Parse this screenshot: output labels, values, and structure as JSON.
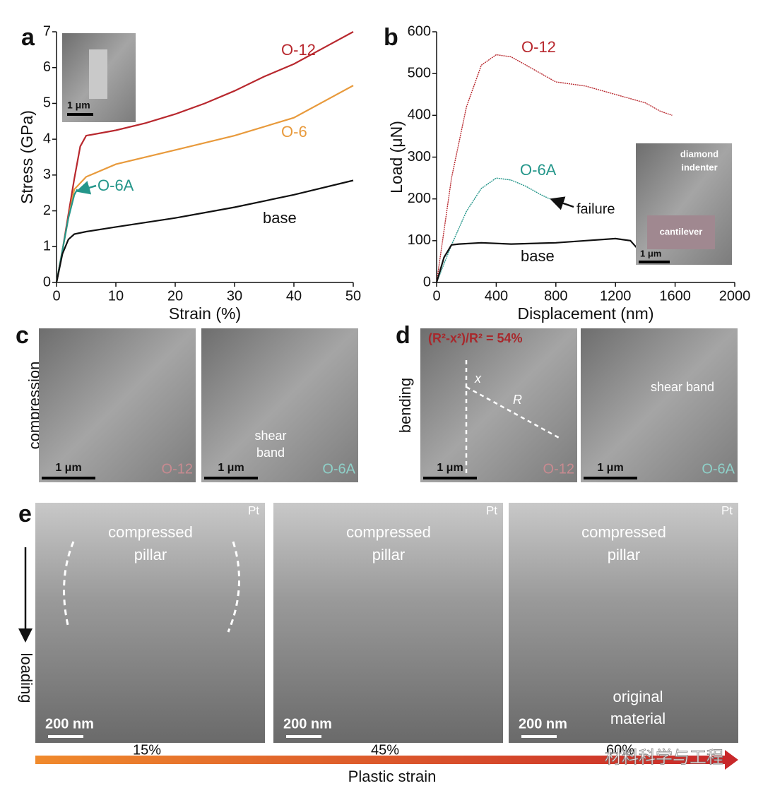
{
  "chart_data": [
    {
      "type": "line",
      "panel": "a",
      "xlabel": "Strain (%)",
      "ylabel": "Stress (GPa)",
      "xlim": [
        0,
        50
      ],
      "ylim": [
        0,
        7
      ],
      "xticks": [
        0,
        10,
        20,
        30,
        40,
        50
      ],
      "yticks": [
        0,
        1,
        2,
        3,
        4,
        5,
        6,
        7
      ],
      "series": [
        {
          "name": "O-12",
          "color": "#b8282e",
          "x": [
            0,
            1,
            2,
            3,
            4,
            5,
            10,
            15,
            20,
            25,
            30,
            35,
            40,
            45,
            50
          ],
          "values": [
            0,
            0.9,
            1.9,
            2.9,
            3.8,
            4.1,
            4.25,
            4.45,
            4.7,
            5.0,
            5.35,
            5.75,
            6.1,
            6.55,
            7.0
          ]
        },
        {
          "name": "O-6",
          "color": "#e89a3c",
          "x": [
            0,
            1,
            2,
            3,
            5,
            10,
            20,
            30,
            40,
            50
          ],
          "values": [
            0,
            0.9,
            1.8,
            2.6,
            2.95,
            3.3,
            3.7,
            4.1,
            4.6,
            5.5
          ]
        },
        {
          "name": "O-6A",
          "color": "#24968a",
          "x": [
            0,
            1,
            2,
            3,
            3.5
          ],
          "values": [
            0,
            0.9,
            1.8,
            2.45,
            2.6
          ]
        },
        {
          "name": "base",
          "color": "#111111",
          "x": [
            0,
            1,
            2,
            3,
            5,
            10,
            20,
            30,
            40,
            50
          ],
          "values": [
            0,
            0.8,
            1.2,
            1.35,
            1.42,
            1.55,
            1.8,
            2.1,
            2.45,
            2.85
          ]
        }
      ],
      "inset": {
        "scale": "1 μm"
      }
    },
    {
      "type": "line",
      "panel": "b",
      "xlabel": "Displacement (nm)",
      "ylabel": "Load (μN)",
      "xlim": [
        0,
        2000
      ],
      "ylim": [
        0,
        600
      ],
      "xticks": [
        0,
        400,
        800,
        1200,
        1600,
        2000
      ],
      "yticks": [
        0,
        100,
        200,
        300,
        400,
        500,
        600
      ],
      "series": [
        {
          "name": "O-12",
          "color": "#b8282e",
          "x": [
            0,
            100,
            200,
            300,
            400,
            500,
            600,
            800,
            1000,
            1200,
            1400,
            1500,
            1580
          ],
          "values": [
            0,
            250,
            420,
            520,
            545,
            540,
            520,
            480,
            470,
            450,
            430,
            410,
            400
          ]
        },
        {
          "name": "O-6A",
          "color": "#24968a",
          "x": [
            0,
            100,
            200,
            300,
            400,
            500,
            600,
            700,
            760
          ],
          "values": [
            0,
            90,
            170,
            225,
            250,
            245,
            230,
            210,
            200
          ]
        },
        {
          "name": "base",
          "color": "#111111",
          "x": [
            0,
            50,
            100,
            150,
            300,
            500,
            800,
            1000,
            1200,
            1300,
            1350
          ],
          "values": [
            0,
            60,
            90,
            92,
            95,
            92,
            95,
            100,
            105,
            100,
            80
          ]
        }
      ],
      "annotation": "failure",
      "inset": {
        "top_label": [
          "diamond",
          "indenter"
        ],
        "bottom_label": "cantilever",
        "scale": "1 μm"
      }
    }
  ],
  "panels": {
    "c": {
      "letter": "c",
      "side_label": "compression",
      "images": [
        {
          "scale": "1 μm",
          "tag": "O-12"
        },
        {
          "scale": "1 μm",
          "tag": "O-6A",
          "note": [
            "shear",
            "band"
          ]
        }
      ]
    },
    "d": {
      "letter": "d",
      "side_label": "bending",
      "formula": "(R²-x²)/R² = 54%",
      "marks": [
        "x",
        "R"
      ],
      "images": [
        {
          "scale": "1 μm",
          "tag": "O-12"
        },
        {
          "scale": "1 μm",
          "tag": "O-6A",
          "note": "shear band"
        }
      ]
    },
    "e": {
      "letter": "e",
      "side_label": "loading",
      "axis_label": "Plastic strain",
      "watermark": "材料科学与工程",
      "images": [
        {
          "corner": "Pt",
          "label": [
            "compressed",
            "pillar"
          ],
          "scale": "200 nm",
          "strain": "15%"
        },
        {
          "corner": "Pt",
          "label": [
            "compressed",
            "pillar"
          ],
          "scale": "200 nm",
          "strain": "45%"
        },
        {
          "corner": "Pt",
          "label": [
            "compressed",
            "pillar"
          ],
          "scale": "200 nm",
          "strain": "60%",
          "extra": [
            "original",
            "material"
          ]
        }
      ]
    }
  }
}
